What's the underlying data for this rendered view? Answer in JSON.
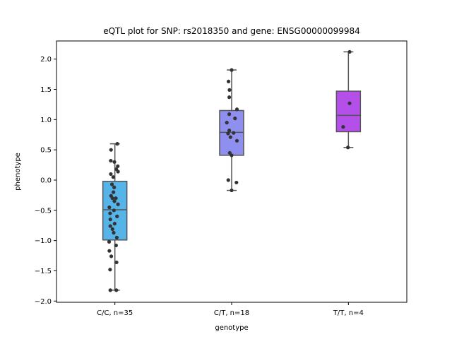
{
  "chart_data": {
    "type": "box",
    "title": "eQTL plot for SNP: rs2018350 and gene: ENSG00000099984",
    "xlabel": "genotype",
    "ylabel": "phenotype",
    "ylim": [
      -2.02,
      2.3
    ],
    "yticks": [
      -2.0,
      -1.5,
      -1.0,
      -0.5,
      0.0,
      0.5,
      1.0,
      1.5,
      2.0
    ],
    "ytick_labels": [
      "−2.0",
      "−1.5",
      "−1.0",
      "−0.5",
      "0.0",
      "0.5",
      "1.0",
      "1.5",
      "2.0"
    ],
    "grid": false,
    "point_color": "#333333",
    "box_edge_color": "#555555",
    "categories": [
      {
        "label": "C/C, n=35",
        "color": "#56b4e9",
        "box": {
          "whisker_low": -1.82,
          "q1": -0.99,
          "median": -0.49,
          "q3": -0.02,
          "whisker_high": 0.6
        },
        "points": [
          [
            0.1,
            0.6
          ],
          [
            -0.16,
            0.5
          ],
          [
            -0.17,
            0.32
          ],
          [
            -0.02,
            0.3
          ],
          [
            0.12,
            0.23
          ],
          [
            0.06,
            0.18
          ],
          [
            0.13,
            0.14
          ],
          [
            -0.17,
            0.1
          ],
          [
            -0.07,
            0.05
          ],
          [
            -0.12,
            -0.07
          ],
          [
            -0.03,
            -0.12
          ],
          [
            -0.06,
            -0.2
          ],
          [
            -0.16,
            -0.26
          ],
          [
            -0.1,
            -0.3
          ],
          [
            0.04,
            -0.3
          ],
          [
            -0.02,
            -0.35
          ],
          [
            0.13,
            -0.4
          ],
          [
            -0.23,
            -0.45
          ],
          [
            -0.04,
            -0.5
          ],
          [
            -0.2,
            -0.55
          ],
          [
            0.09,
            -0.6
          ],
          [
            -0.19,
            -0.65
          ],
          [
            -0.01,
            -0.72
          ],
          [
            -0.19,
            -0.76
          ],
          [
            -0.1,
            -0.81
          ],
          [
            -0.05,
            -0.87
          ],
          [
            0.08,
            -0.95
          ],
          [
            -0.24,
            -1.02
          ],
          [
            0.05,
            -1.08
          ],
          [
            -0.23,
            -1.17
          ],
          [
            -0.15,
            -1.26
          ],
          [
            0.07,
            -1.36
          ],
          [
            -0.2,
            -1.48
          ],
          [
            -0.19,
            -1.82
          ],
          [
            0.06,
            -1.82
          ]
        ]
      },
      {
        "label": "C/T, n=18",
        "color": "#8f8ff0",
        "box": {
          "whisker_low": -0.17,
          "q1": 0.41,
          "median": 0.79,
          "q3": 1.15,
          "whisker_high": 1.82
        },
        "points": [
          [
            0.0,
            1.82
          ],
          [
            -0.13,
            1.63
          ],
          [
            -0.09,
            1.49
          ],
          [
            -0.1,
            1.37
          ],
          [
            0.22,
            1.17
          ],
          [
            -0.1,
            1.09
          ],
          [
            0.14,
            1.02
          ],
          [
            -0.2,
            0.95
          ],
          [
            -0.1,
            0.82
          ],
          [
            -0.15,
            0.77
          ],
          [
            -0.05,
            0.71
          ],
          [
            0.22,
            0.65
          ],
          [
            -0.08,
            0.45
          ],
          [
            0.0,
            0.41
          ],
          [
            -0.14,
            0.0
          ],
          [
            0.2,
            -0.04
          ],
          [
            0.0,
            -0.17
          ],
          [
            0.08,
            0.78
          ]
        ]
      },
      {
        "label": "T/T, n=4",
        "color": "#b44fea",
        "box": {
          "whisker_low": 0.54,
          "q1": 0.8,
          "median": 1.07,
          "q3": 1.47,
          "whisker_high": 2.12
        },
        "points": [
          [
            0.05,
            2.12
          ],
          [
            0.05,
            1.27
          ],
          [
            -0.22,
            0.88
          ],
          [
            -0.02,
            0.54
          ]
        ]
      }
    ]
  }
}
